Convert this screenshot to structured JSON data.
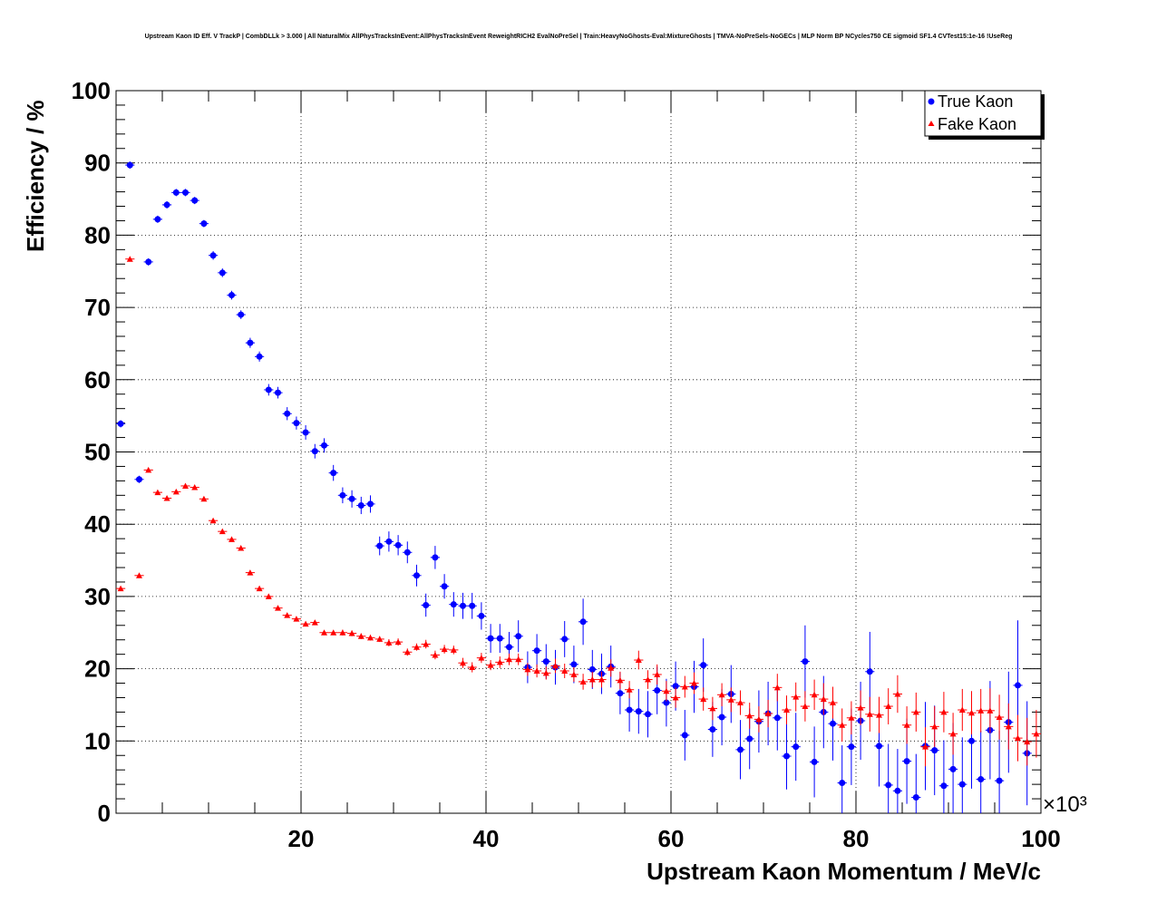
{
  "chart_data": {
    "type": "scatter",
    "title": "Upstream Kaon ID Eff. V TrackP | CombDLLk > 3.000 | All NaturalMix AllPhysTracksInEvent:AllPhysTracksInEvent ReweightRICH2 EvalNoPreSel | Train:HeavyNoGhosts-Eval:MixtureGhosts | TMVA-NoPreSels-NoGECs | MLP Norm BP NCycles750 CE sigmoid SF1.4 CVTest15:1e-16 !UseReg",
    "xlabel": "Upstream Kaon Momentum / MeV/c",
    "ylabel": "Efficiency / %",
    "x_multiplier": "×10³",
    "xlim": [
      0,
      100
    ],
    "ylim": [
      0,
      100
    ],
    "xticks": [
      20,
      40,
      60,
      80,
      100
    ],
    "yticks": [
      0,
      10,
      20,
      30,
      40,
      50,
      60,
      70,
      80,
      90,
      100
    ],
    "grid": true,
    "legend_position": "top-right",
    "series": [
      {
        "name": "True Kaon",
        "marker": "circle",
        "color": "#0000ff",
        "points": [
          [
            0.5,
            53.9,
            0.5
          ],
          [
            1.5,
            89.7,
            0.5
          ],
          [
            2.5,
            46.2,
            0.5
          ],
          [
            3.5,
            76.3,
            0.5
          ],
          [
            4.5,
            82.2,
            0.5
          ],
          [
            5.5,
            84.2,
            0.5
          ],
          [
            6.5,
            85.9,
            0.5
          ],
          [
            7.5,
            85.9,
            0.5
          ],
          [
            8.5,
            84.8,
            0.5
          ],
          [
            9.5,
            81.6,
            0.5
          ],
          [
            10.5,
            77.2,
            0.6
          ],
          [
            11.5,
            74.8,
            0.6
          ],
          [
            12.5,
            71.7,
            0.6
          ],
          [
            13.5,
            69.0,
            0.6
          ],
          [
            14.5,
            65.1,
            0.7
          ],
          [
            15.5,
            63.2,
            0.7
          ],
          [
            16.5,
            58.6,
            0.8
          ],
          [
            17.5,
            58.2,
            0.8
          ],
          [
            18.5,
            55.3,
            0.9
          ],
          [
            19.5,
            54.0,
            0.9
          ],
          [
            20.5,
            52.7,
            1.0
          ],
          [
            21.5,
            50.1,
            1.0
          ],
          [
            22.5,
            50.9,
            1.0
          ],
          [
            23.5,
            47.1,
            1.1
          ],
          [
            24.5,
            44.0,
            1.1
          ],
          [
            25.5,
            43.5,
            1.2
          ],
          [
            26.5,
            42.6,
            1.2
          ],
          [
            27.5,
            42.8,
            1.2
          ],
          [
            28.5,
            37.0,
            1.3
          ],
          [
            29.5,
            37.6,
            1.4
          ],
          [
            30.5,
            37.1,
            1.4
          ],
          [
            31.5,
            36.1,
            1.5
          ],
          [
            32.5,
            32.9,
            1.5
          ],
          [
            33.5,
            28.8,
            1.6
          ],
          [
            34.5,
            35.4,
            1.6
          ],
          [
            35.5,
            31.4,
            1.7
          ],
          [
            36.5,
            28.9,
            1.7
          ],
          [
            37.5,
            28.7,
            1.8
          ],
          [
            38.5,
            28.7,
            1.8
          ],
          [
            39.5,
            27.3,
            1.9
          ],
          [
            40.5,
            24.2,
            2.0
          ],
          [
            41.5,
            24.2,
            2.0
          ],
          [
            42.5,
            23.0,
            2.1
          ],
          [
            43.5,
            24.5,
            2.2
          ],
          [
            44.5,
            20.2,
            2.2
          ],
          [
            45.5,
            22.5,
            2.3
          ],
          [
            46.5,
            21.0,
            2.4
          ],
          [
            47.5,
            20.2,
            2.4
          ],
          [
            48.5,
            24.1,
            2.5
          ],
          [
            49.5,
            20.6,
            2.6
          ],
          [
            50.5,
            26.5,
            3.2
          ],
          [
            51.5,
            19.9,
            2.7
          ],
          [
            52.5,
            19.3,
            2.8
          ],
          [
            53.5,
            20.3,
            2.9
          ],
          [
            54.5,
            16.6,
            2.9
          ],
          [
            55.5,
            14.3,
            3.0
          ],
          [
            56.5,
            14.1,
            3.1
          ],
          [
            57.5,
            13.7,
            3.2
          ],
          [
            58.5,
            17.0,
            3.3
          ],
          [
            59.5,
            15.3,
            3.3
          ],
          [
            60.5,
            17.6,
            3.4
          ],
          [
            61.5,
            10.8,
            3.5
          ],
          [
            62.5,
            17.5,
            3.6
          ],
          [
            63.5,
            20.5,
            3.7
          ],
          [
            64.5,
            11.6,
            3.8
          ],
          [
            65.5,
            13.3,
            3.9
          ],
          [
            66.5,
            16.5,
            4.0
          ],
          [
            67.5,
            8.8,
            4.1
          ],
          [
            68.5,
            10.3,
            4.2
          ],
          [
            69.5,
            12.7,
            4.3
          ],
          [
            70.5,
            13.8,
            4.4
          ],
          [
            71.5,
            13.2,
            4.5
          ],
          [
            72.5,
            7.9,
            4.6
          ],
          [
            73.5,
            9.2,
            4.7
          ],
          [
            74.5,
            21.0,
            5.0
          ],
          [
            75.5,
            7.1,
            4.9
          ],
          [
            76.5,
            14.0,
            5.0
          ],
          [
            77.5,
            12.4,
            5.1
          ],
          [
            78.5,
            4.2,
            5.2
          ],
          [
            79.5,
            9.2,
            5.3
          ],
          [
            80.5,
            12.8,
            5.4
          ],
          [
            81.5,
            19.6,
            5.5
          ],
          [
            82.5,
            9.3,
            5.6
          ],
          [
            83.5,
            3.9,
            5.7
          ],
          [
            84.5,
            3.1,
            5.8
          ],
          [
            85.5,
            7.2,
            5.9
          ],
          [
            86.5,
            2.2,
            6.0
          ],
          [
            87.5,
            9.3,
            6.1
          ],
          [
            88.5,
            8.7,
            6.2
          ],
          [
            89.5,
            3.8,
            6.3
          ],
          [
            90.5,
            6.1,
            6.4
          ],
          [
            91.5,
            4.0,
            6.5
          ],
          [
            92.5,
            10.0,
            6.6
          ],
          [
            93.5,
            4.7,
            6.7
          ],
          [
            94.5,
            11.5,
            6.8
          ],
          [
            95.5,
            4.5,
            6.9
          ],
          [
            96.5,
            12.6,
            7.0
          ],
          [
            97.5,
            17.7,
            9.0
          ],
          [
            98.5,
            8.3,
            7.2
          ]
        ]
      },
      {
        "name": "Fake Kaon",
        "marker": "triangle",
        "color": "#ff0000",
        "points": [
          [
            0.5,
            31.1,
            0.2
          ],
          [
            1.5,
            76.7,
            0.3
          ],
          [
            2.5,
            32.9,
            0.2
          ],
          [
            3.5,
            47.5,
            0.2
          ],
          [
            4.5,
            44.4,
            0.2
          ],
          [
            5.5,
            43.6,
            0.2
          ],
          [
            6.5,
            44.5,
            0.2
          ],
          [
            7.5,
            45.3,
            0.2
          ],
          [
            8.5,
            45.1,
            0.2
          ],
          [
            9.5,
            43.5,
            0.2
          ],
          [
            10.5,
            40.5,
            0.2
          ],
          [
            11.5,
            39.0,
            0.2
          ],
          [
            12.5,
            37.9,
            0.2
          ],
          [
            13.5,
            36.7,
            0.2
          ],
          [
            14.5,
            33.3,
            0.3
          ],
          [
            15.5,
            31.1,
            0.3
          ],
          [
            16.5,
            30.0,
            0.3
          ],
          [
            17.5,
            28.4,
            0.3
          ],
          [
            18.5,
            27.4,
            0.3
          ],
          [
            19.5,
            26.9,
            0.3
          ],
          [
            20.5,
            26.2,
            0.3
          ],
          [
            21.5,
            26.4,
            0.3
          ],
          [
            22.5,
            25.0,
            0.3
          ],
          [
            23.5,
            25.0,
            0.3
          ],
          [
            24.5,
            25.0,
            0.4
          ],
          [
            25.5,
            24.9,
            0.4
          ],
          [
            26.5,
            24.5,
            0.4
          ],
          [
            27.5,
            24.3,
            0.4
          ],
          [
            28.5,
            24.1,
            0.4
          ],
          [
            29.5,
            23.6,
            0.5
          ],
          [
            30.5,
            23.7,
            0.5
          ],
          [
            31.5,
            22.3,
            0.5
          ],
          [
            32.5,
            23.0,
            0.5
          ],
          [
            33.5,
            23.4,
            0.6
          ],
          [
            34.5,
            21.9,
            0.6
          ],
          [
            35.5,
            22.7,
            0.6
          ],
          [
            36.5,
            22.6,
            0.6
          ],
          [
            37.5,
            20.8,
            0.7
          ],
          [
            38.5,
            20.2,
            0.7
          ],
          [
            39.5,
            21.5,
            0.7
          ],
          [
            40.5,
            20.5,
            0.7
          ],
          [
            41.5,
            20.9,
            0.8
          ],
          [
            42.5,
            21.3,
            0.8
          ],
          [
            43.5,
            21.3,
            0.8
          ],
          [
            44.5,
            19.9,
            0.9
          ],
          [
            45.5,
            19.7,
            0.9
          ],
          [
            46.5,
            19.4,
            0.9
          ],
          [
            47.5,
            20.4,
            1.0
          ],
          [
            48.5,
            19.7,
            1.0
          ],
          [
            49.5,
            19.2,
            1.0
          ],
          [
            50.5,
            18.2,
            1.1
          ],
          [
            51.5,
            18.5,
            1.1
          ],
          [
            52.5,
            18.5,
            1.1
          ],
          [
            53.5,
            20.1,
            1.2
          ],
          [
            54.5,
            18.4,
            1.2
          ],
          [
            55.5,
            17.1,
            1.2
          ],
          [
            56.5,
            21.2,
            1.3
          ],
          [
            57.5,
            18.5,
            1.3
          ],
          [
            58.5,
            19.2,
            1.4
          ],
          [
            59.5,
            16.9,
            1.4
          ],
          [
            60.5,
            16.0,
            1.4
          ],
          [
            61.5,
            17.5,
            1.5
          ],
          [
            62.5,
            18.0,
            1.5
          ],
          [
            63.5,
            15.8,
            1.6
          ],
          [
            64.5,
            14.5,
            1.6
          ],
          [
            65.5,
            16.4,
            1.6
          ],
          [
            66.5,
            15.7,
            1.7
          ],
          [
            67.5,
            15.3,
            1.7
          ],
          [
            68.5,
            13.5,
            1.8
          ],
          [
            69.5,
            13.0,
            1.8
          ],
          [
            70.5,
            13.8,
            1.9
          ],
          [
            71.5,
            17.4,
            1.9
          ],
          [
            72.5,
            14.3,
            2.0
          ],
          [
            73.5,
            16.1,
            2.0
          ],
          [
            74.5,
            14.8,
            2.1
          ],
          [
            75.5,
            16.4,
            2.1
          ],
          [
            76.5,
            15.8,
            2.2
          ],
          [
            77.5,
            15.3,
            2.2
          ],
          [
            78.5,
            12.2,
            2.3
          ],
          [
            79.5,
            13.2,
            2.3
          ],
          [
            80.5,
            14.6,
            2.4
          ],
          [
            81.5,
            13.7,
            2.4
          ],
          [
            82.5,
            13.6,
            2.5
          ],
          [
            83.5,
            14.8,
            2.5
          ],
          [
            84.5,
            16.5,
            2.6
          ],
          [
            85.5,
            12.2,
            2.6
          ],
          [
            86.5,
            14.0,
            2.7
          ],
          [
            87.5,
            9.2,
            2.7
          ],
          [
            88.5,
            12.0,
            2.8
          ],
          [
            89.5,
            14.0,
            2.8
          ],
          [
            90.5,
            11.0,
            2.9
          ],
          [
            91.5,
            14.3,
            2.9
          ],
          [
            92.5,
            13.9,
            3.0
          ],
          [
            93.5,
            14.2,
            3.0
          ],
          [
            94.5,
            14.2,
            3.1
          ],
          [
            95.5,
            13.3,
            3.1
          ],
          [
            96.5,
            12.0,
            3.2
          ],
          [
            97.5,
            10.4,
            3.2
          ],
          [
            98.5,
            9.9,
            3.3
          ],
          [
            99.5,
            11.0,
            3.3
          ]
        ]
      }
    ]
  }
}
